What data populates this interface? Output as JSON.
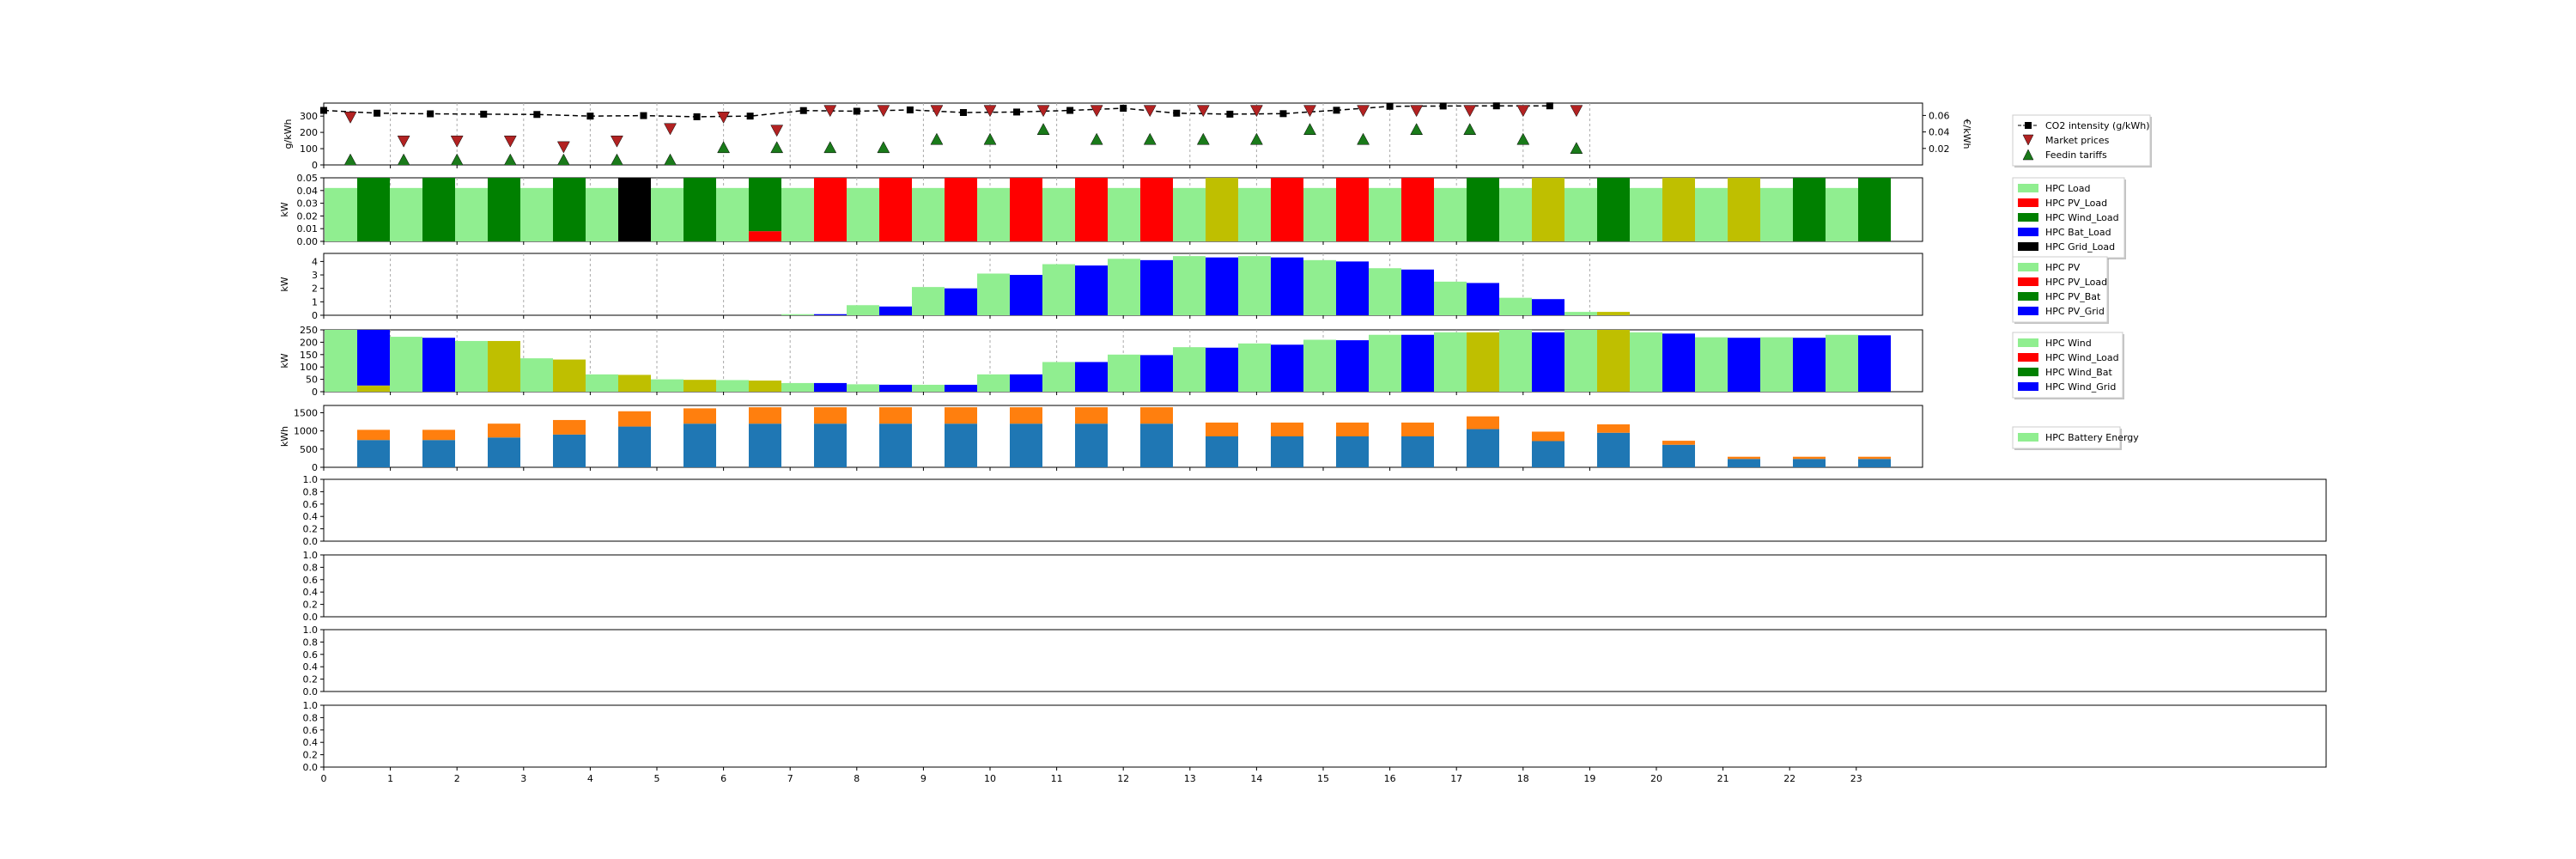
{
  "chart_data": [
    {
      "type": "line",
      "id": "prices",
      "ylabel": "g/kWh",
      "ylabel_right": "€/kWh",
      "yticks": [
        "0",
        "100",
        "200",
        "300"
      ],
      "yticks_right": [
        "0.02",
        "0.04",
        "0.06"
      ],
      "ylim": [
        0,
        380
      ],
      "ylim_right": [
        0,
        0.075
      ],
      "legend_position": "right",
      "x_step": 0.8,
      "series": [
        {
          "name": "CO2 intensity (g/kWh)",
          "axis": "left",
          "marker": "square",
          "color": "#000000",
          "x": [
            0,
            0.8,
            1.6,
            2.4,
            3.2,
            4.0,
            4.8,
            5.6,
            6.4,
            7.2,
            8.0,
            8.8,
            9.6,
            10.4,
            11.2,
            12.0,
            12.8,
            13.6,
            14.4,
            15.2,
            16.0,
            16.8,
            17.6,
            18.4
          ],
          "y": [
            335,
            318,
            314,
            312,
            310,
            300,
            303,
            296,
            300,
            334,
            330,
            338,
            322,
            325,
            335,
            348,
            318,
            312,
            315,
            336,
            360,
            362,
            363,
            363
          ]
        },
        {
          "name": "Market prices",
          "axis": "right",
          "marker": "triangle-down",
          "color": "#b22222",
          "x": [
            0.4,
            1.2,
            2.0,
            2.8,
            3.6,
            4.4,
            5.2,
            6.0,
            6.8,
            7.6,
            8.4,
            9.2,
            10.0,
            10.8,
            11.6,
            12.4,
            13.2,
            14.0,
            14.8,
            15.6,
            16.4,
            17.2,
            18.0,
            18.8
          ],
          "y": [
            0.058,
            0.029,
            0.029,
            0.029,
            0.022,
            0.029,
            0.044,
            0.058,
            0.042,
            0.066,
            0.066,
            0.066,
            0.066,
            0.066,
            0.066,
            0.066,
            0.066,
            0.066,
            0.066,
            0.066,
            0.066,
            0.066,
            0.066,
            0.066
          ]
        },
        {
          "name": "Feedin tariffs",
          "axis": "right",
          "marker": "triangle-up",
          "color": "#1a7a1a",
          "x": [
            0.4,
            1.2,
            2.0,
            2.8,
            3.6,
            4.4,
            5.2,
            6.0,
            6.8,
            7.6,
            8.4,
            9.2,
            10.0,
            10.8,
            11.6,
            12.4,
            13.2,
            14.0,
            14.8,
            15.6,
            16.4,
            17.2,
            18.0,
            18.8
          ],
          "y": [
            0.006,
            0.006,
            0.006,
            0.006,
            0.006,
            0.006,
            0.006,
            0.021,
            0.021,
            0.021,
            0.021,
            0.031,
            0.031,
            0.043,
            0.031,
            0.031,
            0.031,
            0.031,
            0.043,
            0.031,
            0.043,
            0.043,
            0.031,
            0.02
          ]
        }
      ]
    },
    {
      "type": "bar",
      "id": "hpc_load",
      "ylabel": "kW",
      "yticks": [
        "0.00",
        "0.01",
        "0.02",
        "0.03",
        "0.04",
        "0.05"
      ],
      "ylim": [
        0,
        0.05
      ],
      "legend_position": "right",
      "x_step": 0.8,
      "load": [
        0.042,
        0.042,
        0.042,
        0.042,
        0.042,
        0.042,
        0.042,
        0.042,
        0.042,
        0.042,
        0.042,
        0.042,
        0.042,
        0.042,
        0.042,
        0.042,
        0.042,
        0.042,
        0.042,
        0.042,
        0.042,
        0.042,
        0.042,
        0.042
      ],
      "supply": [
        "Wind_Load",
        "Wind_Load",
        "Wind_Load",
        "Wind_Load",
        "Grid_Load",
        "Wind_Load",
        "Wind_Load",
        "PV_Load",
        "PV_Load",
        "PV_Load",
        "PV_Load",
        "PV_Load",
        "PV_Load",
        "Bat_Load",
        "PV_Load",
        "PV_Load",
        "PV_Load",
        "Wind_Load",
        "Bat_Load",
        "Wind_Load",
        "Bat_Load",
        "Bat_Load",
        "Wind_Load",
        "Wind_Load"
      ],
      "supply_values": [
        0.05,
        0.05,
        0.05,
        0.05,
        0.05,
        0.05,
        0.05,
        0.05,
        0.05,
        0.05,
        0.05,
        0.05,
        0.05,
        0.05,
        0.05,
        0.05,
        0.05,
        0.05,
        0.05,
        0.05,
        0.05,
        0.05,
        0.05,
        0.05
      ],
      "extra_segments": [
        {
          "index": 6,
          "segments": [
            {
              "type": "PV_Load",
              "value": 0.008
            },
            {
              "type": "Wind_Load",
              "value": 0.042
            }
          ]
        }
      ],
      "series": [
        {
          "name": "HPC Load",
          "color": "#90ee90"
        },
        {
          "name": "HPC PV_Load",
          "color": "#ff0000"
        },
        {
          "name": "HPC Wind_Load",
          "color": "#008000"
        },
        {
          "name": "HPC Bat_Load",
          "color": "#0000ff"
        },
        {
          "name": "HPC Grid_Load",
          "color": "#000000"
        }
      ],
      "bat_color": "#bfbf00"
    },
    {
      "type": "bar",
      "id": "hpc_pv",
      "ylabel": "kW",
      "yticks": [
        "0",
        "1",
        "2",
        "3",
        "4"
      ],
      "ylim": [
        0,
        4.6
      ],
      "legend_position": "right",
      "x_step": 0.8,
      "pv": [
        0,
        0,
        0,
        0,
        0,
        0,
        0,
        0.08,
        0.75,
        2.1,
        3.1,
        3.8,
        4.2,
        4.4,
        4.4,
        4.1,
        3.5,
        2.5,
        1.3,
        0.25,
        0,
        0,
        0,
        0
      ],
      "pv_grid": [
        0,
        0,
        0,
        0,
        0,
        0,
        0,
        0.08,
        0.65,
        2.0,
        3.0,
        3.7,
        4.1,
        4.3,
        4.3,
        4.0,
        3.4,
        2.4,
        1.2,
        0.25,
        0,
        0,
        0,
        0
      ],
      "series": [
        {
          "name": "HPC PV",
          "color": "#90ee90"
        },
        {
          "name": "HPC PV_Load",
          "color": "#ff0000"
        },
        {
          "name": "HPC PV_Bat",
          "color": "#008000"
        },
        {
          "name": "HPC PV_Grid",
          "color": "#0000ff"
        }
      ],
      "bat_color": "#bfbf00"
    },
    {
      "type": "bar",
      "id": "hpc_wind",
      "ylabel": "kW",
      "yticks": [
        "0",
        "50",
        "100",
        "150",
        "200",
        "250"
      ],
      "ylim": [
        0,
        250
      ],
      "legend_position": "right",
      "x_step": 0.8,
      "wind": [
        250,
        222,
        205,
        135,
        70,
        50,
        47,
        35,
        30,
        28,
        70,
        120,
        150,
        180,
        195,
        210,
        230,
        240,
        250,
        250,
        240,
        220,
        220,
        230
      ],
      "wind_out": [
        250,
        218,
        205,
        130,
        68,
        48,
        45,
        35,
        28,
        28,
        70,
        120,
        148,
        178,
        190,
        208,
        230,
        240,
        240,
        250,
        235,
        218,
        218,
        228
      ],
      "out_type": [
        "Wind_Grid",
        "Wind_Grid",
        "Wind_Bat",
        "Wind_Bat",
        "Wind_Bat",
        "Wind_Bat",
        "Wind_Bat",
        "Wind_Grid",
        "Wind_Grid",
        "Wind_Grid",
        "Wind_Grid",
        "Wind_Grid",
        "Wind_Grid",
        "Wind_Grid",
        "Wind_Grid",
        "Wind_Grid",
        "Wind_Grid",
        "Wind_Bat",
        "Wind_Grid",
        "Wind_Bat",
        "Wind_Grid",
        "Wind_Grid",
        "Wind_Grid",
        "Wind_Grid"
      ],
      "bat_fraction_first": 25,
      "series": [
        {
          "name": "HPC Wind",
          "color": "#90ee90"
        },
        {
          "name": "HPC Wind_Load",
          "color": "#ff0000"
        },
        {
          "name": "HPC Wind_Bat",
          "color": "#008000"
        },
        {
          "name": "HPC Wind_Grid",
          "color": "#0000ff"
        }
      ],
      "bat_color": "#bfbf00"
    },
    {
      "type": "bar",
      "id": "hpc_battery",
      "ylabel": "kWh",
      "yticks": [
        "0",
        "500",
        "1000",
        "1500"
      ],
      "ylim": [
        0,
        1700
      ],
      "legend_position": "right",
      "x_step": 0.8,
      "blue": [
        750,
        750,
        820,
        900,
        1120,
        1200,
        1200,
        1200,
        1200,
        1200,
        1200,
        1200,
        1200,
        850,
        850,
        850,
        850,
        1050,
        720,
        950,
        620,
        230,
        230,
        230
      ],
      "orange": [
        280,
        280,
        380,
        400,
        420,
        420,
        450,
        450,
        450,
        450,
        450,
        450,
        450,
        380,
        380,
        380,
        380,
        350,
        260,
        230,
        110,
        60,
        60,
        60
      ],
      "blue_color": "#1f77b4",
      "orange_color": "#ff7f0e",
      "series": [
        {
          "name": "HPC Battery Energy",
          "color": "#90ee90"
        }
      ]
    },
    {
      "type": "line",
      "id": "empty1",
      "yticks": [
        "0.0",
        "0.2",
        "0.4",
        "0.6",
        "0.8",
        "1.0"
      ],
      "ylim": [
        0,
        1
      ]
    },
    {
      "type": "line",
      "id": "empty2",
      "yticks": [
        "0.0",
        "0.2",
        "0.4",
        "0.6",
        "0.8",
        "1.0"
      ],
      "ylim": [
        0,
        1
      ]
    },
    {
      "type": "line",
      "id": "empty3",
      "yticks": [
        "0.0",
        "0.2",
        "0.4",
        "0.6",
        "0.8",
        "1.0"
      ],
      "ylim": [
        0,
        1
      ]
    },
    {
      "type": "line",
      "id": "empty4",
      "yticks": [
        "0.0",
        "0.2",
        "0.4",
        "0.6",
        "0.8",
        "1.0"
      ],
      "ylim": [
        0,
        1
      ],
      "xticks": [
        "0",
        "1",
        "2",
        "3",
        "4",
        "5",
        "6",
        "7",
        "8",
        "9",
        "10",
        "11",
        "12",
        "13",
        "14",
        "15",
        "16",
        "17",
        "18",
        "19",
        "20",
        "21",
        "22",
        "23"
      ]
    }
  ],
  "xticks_short": [
    "0",
    "1",
    "2",
    "3",
    "4",
    "5",
    "6",
    "7",
    "8",
    "9",
    "10",
    "11",
    "12",
    "13",
    "14",
    "15",
    "16",
    "17",
    "18",
    "19"
  ]
}
